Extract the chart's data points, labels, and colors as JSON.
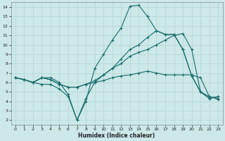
{
  "xlabel": "Humidex (Indice chaleur)",
  "bg_color": "#cce8e8",
  "grid_color": "#b8d8d8",
  "line_color": "#1a6b6b",
  "xlim": [
    -0.5,
    23.5
  ],
  "ylim": [
    1.5,
    14.5
  ],
  "xticks": [
    0,
    1,
    2,
    3,
    4,
    5,
    6,
    7,
    8,
    9,
    10,
    11,
    12,
    13,
    14,
    15,
    16,
    17,
    18,
    19,
    20,
    21,
    22,
    23
  ],
  "yticks": [
    2,
    3,
    4,
    5,
    6,
    7,
    8,
    9,
    10,
    11,
    12,
    13,
    14
  ],
  "s1x": [
    0,
    1,
    2,
    3,
    4,
    5,
    6,
    7,
    8,
    9,
    10,
    11,
    12,
    13,
    14,
    15,
    16,
    17,
    18,
    19,
    20,
    21,
    22,
    23
  ],
  "s1y": [
    6.5,
    6.3,
    6.0,
    6.5,
    6.5,
    6.0,
    4.7,
    2.0,
    4.0,
    7.5,
    9.0,
    10.5,
    11.8,
    14.1,
    14.2,
    13.0,
    11.5,
    11.1,
    11.1,
    9.5,
    6.7,
    5.0,
    4.3,
    4.5
  ],
  "s2x": [
    0,
    1,
    2,
    3,
    4,
    5,
    6,
    7,
    8,
    9,
    10,
    11,
    12,
    13,
    14,
    15,
    16,
    17,
    18,
    19,
    20,
    21,
    22,
    23
  ],
  "s2y": [
    6.5,
    6.3,
    6.0,
    5.8,
    5.8,
    5.3,
    4.5,
    2.0,
    4.3,
    6.0,
    6.8,
    7.5,
    8.5,
    9.5,
    10.0,
    10.8,
    11.5,
    11.1,
    11.1,
    9.5,
    6.7,
    5.0,
    4.3,
    4.5
  ],
  "s3x": [
    0,
    1,
    2,
    3,
    4,
    5,
    6,
    7,
    8,
    9,
    10,
    11,
    12,
    13,
    14,
    15,
    16,
    17,
    18,
    19,
    20,
    21,
    22,
    23
  ],
  "s3y": [
    6.5,
    6.3,
    6.0,
    6.5,
    6.3,
    5.8,
    5.5,
    5.5,
    5.8,
    6.0,
    6.2,
    6.5,
    6.7,
    6.8,
    7.0,
    7.2,
    7.0,
    6.8,
    6.8,
    6.8,
    6.8,
    6.5,
    4.5,
    4.2
  ],
  "s4x": [
    0,
    1,
    2,
    3,
    4,
    5,
    6,
    7,
    8,
    9,
    10,
    11,
    12,
    13,
    14,
    15,
    16,
    17,
    18,
    19,
    20,
    21,
    22,
    23
  ],
  "s4y": [
    6.5,
    6.3,
    6.0,
    6.5,
    6.3,
    5.8,
    5.5,
    5.5,
    5.8,
    6.2,
    6.8,
    7.5,
    8.0,
    8.8,
    9.2,
    9.5,
    10.0,
    10.5,
    11.0,
    11.2,
    9.5,
    5.0,
    4.5,
    4.3
  ]
}
